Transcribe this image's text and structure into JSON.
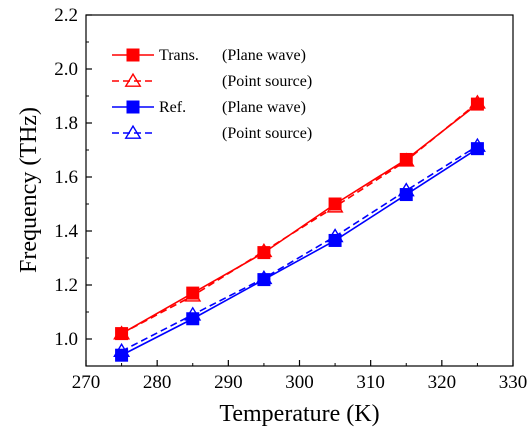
{
  "chart_data": {
    "type": "line",
    "xlabel": "Temperature (K)",
    "ylabel": "Frequency (THz)",
    "xlim": [
      270,
      330
    ],
    "ylim": [
      0.9,
      2.2
    ],
    "xticks": [
      270,
      280,
      290,
      300,
      310,
      320,
      330
    ],
    "yticks": [
      1.0,
      1.2,
      1.4,
      1.6,
      1.8,
      2.0,
      2.2
    ],
    "ytick_labels": [
      "1.0",
      "1.2",
      "1.4",
      "1.6",
      "1.8",
      "2.0",
      "2.2"
    ],
    "grid": false,
    "legend_position": "top-left",
    "x": [
      275,
      285,
      295,
      305,
      315,
      325
    ],
    "series": [
      {
        "label_main": "Trans.",
        "label_sub": "(Plane wave)",
        "color": "#ff0000",
        "line": "solid",
        "marker": "filled-square",
        "values": [
          1.02,
          1.17,
          1.32,
          1.5,
          1.665,
          1.87
        ]
      },
      {
        "label_main": "",
        "label_sub": "(Point source)",
        "color": "#ff0000",
        "line": "dashed",
        "marker": "open-triangle",
        "values": [
          1.02,
          1.16,
          1.325,
          1.49,
          1.66,
          1.875
        ]
      },
      {
        "label_main": "Ref.",
        "label_sub": "(Plane wave)",
        "color": "#0000ff",
        "line": "solid",
        "marker": "filled-square",
        "values": [
          0.94,
          1.075,
          1.22,
          1.365,
          1.535,
          1.705
        ]
      },
      {
        "label_main": "",
        "label_sub": "(Point source)",
        "color": "#0000ff",
        "line": "dashed",
        "marker": "open-triangle",
        "values": [
          0.955,
          1.09,
          1.225,
          1.38,
          1.55,
          1.715
        ]
      }
    ]
  }
}
